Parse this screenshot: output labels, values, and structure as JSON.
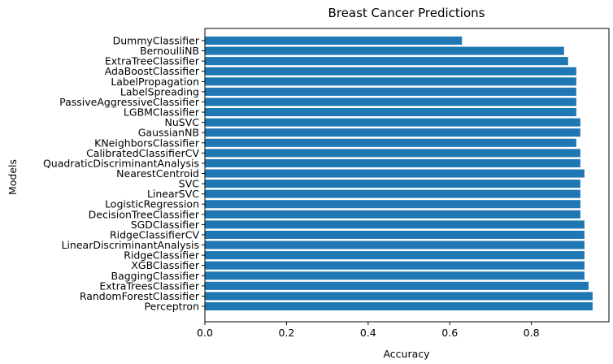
{
  "chart_data": {
    "type": "bar",
    "orientation": "horizontal",
    "title": "Breast Cancer Predictions",
    "xlabel": "Accuracy",
    "ylabel": "Models",
    "xlim": [
      0,
      0.99
    ],
    "xticks": [
      0.0,
      0.2,
      0.4,
      0.6,
      0.8
    ],
    "xtick_labels": [
      "0.0",
      "0.2",
      "0.4",
      "0.6",
      "0.8"
    ],
    "bar_color": "#1f77b4",
    "grid": false,
    "categories": [
      "DummyClassifier",
      "BernoulliNB",
      "ExtraTreeClassifier",
      "AdaBoostClassifier",
      "LabelPropagation",
      "LabelSpreading",
      "PassiveAggressiveClassifier",
      "LGBMClassifier",
      "NuSVC",
      "GaussianNB",
      "KNeighborsClassifier",
      "CalibratedClassifierCV",
      "QuadraticDiscriminantAnalysis",
      "NearestCentroid",
      "SVC",
      "LinearSVC",
      "LogisticRegression",
      "DecisionTreeClassifier",
      "SGDClassifier",
      "RidgeClassifierCV",
      "LinearDiscriminantAnalysis",
      "RidgeClassifier",
      "XGBClassifier",
      "BaggingClassifier",
      "ExtraTreesClassifier",
      "RandomForestClassifier",
      "Perceptron"
    ],
    "values": [
      0.63,
      0.88,
      0.89,
      0.91,
      0.91,
      0.91,
      0.91,
      0.91,
      0.92,
      0.92,
      0.91,
      0.92,
      0.92,
      0.93,
      0.92,
      0.92,
      0.92,
      0.92,
      0.93,
      0.93,
      0.93,
      0.93,
      0.93,
      0.93,
      0.94,
      0.95,
      0.95
    ]
  }
}
